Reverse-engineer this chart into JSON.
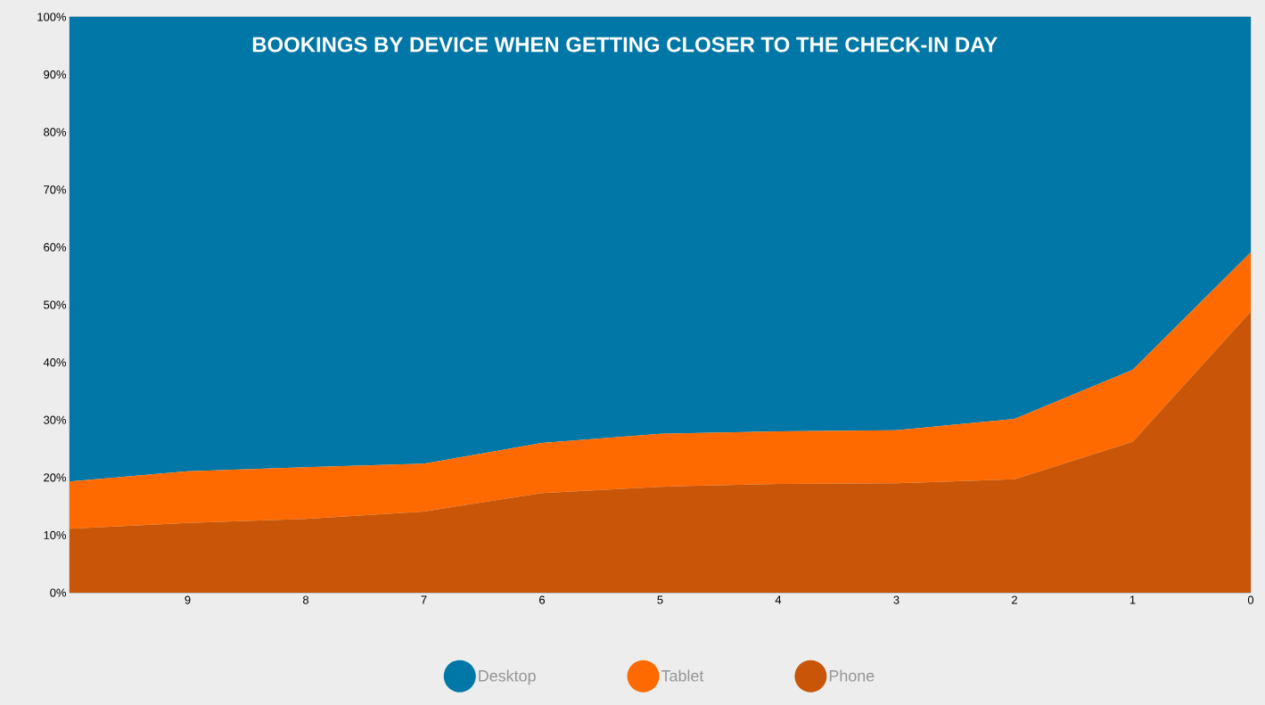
{
  "chart_data": {
    "type": "area",
    "title": "BOOKINGS BY DEVICE WHEN GETTING CLOSER TO THE CHECK-IN DAY",
    "stacked": true,
    "x": [
      10,
      9,
      8,
      7,
      6,
      5,
      4,
      3,
      2,
      1,
      0
    ],
    "xlim": [
      10,
      0
    ],
    "xticks": [
      9,
      8,
      7,
      6,
      5,
      4,
      3,
      2,
      1,
      0
    ],
    "ylim": [
      0,
      100
    ],
    "yticks": [
      {
        "value": 0,
        "label": "0%"
      },
      {
        "value": 10,
        "label": "10%"
      },
      {
        "value": 20,
        "label": "20%"
      },
      {
        "value": 30,
        "label": "30%"
      },
      {
        "value": 40,
        "label": "40%"
      },
      {
        "value": 50,
        "label": "50%"
      },
      {
        "value": 60,
        "label": "60%"
      },
      {
        "value": 70,
        "label": "70%"
      },
      {
        "value": 80,
        "label": "80%"
      },
      {
        "value": 90,
        "label": "90%"
      },
      {
        "value": 100,
        "label": "100%"
      }
    ],
    "grid": "y",
    "legend": "bottom",
    "series": [
      {
        "name": "Phone",
        "color": "#c85508",
        "values": [
          11.1,
          12.1,
          12.8,
          14.1,
          17.3,
          18.4,
          18.9,
          19.0,
          19.7,
          26.2,
          48.8
        ]
      },
      {
        "name": "Tablet",
        "color": "#ff6a00",
        "values": [
          8.2,
          9.0,
          9.0,
          8.3,
          8.7,
          9.2,
          9.1,
          9.2,
          10.5,
          12.5,
          10.3
        ]
      },
      {
        "name": "Desktop",
        "color": "#0077a6",
        "values": [
          80.7,
          78.9,
          78.2,
          77.6,
          74.0,
          72.4,
          72.0,
          71.8,
          69.8,
          61.3,
          40.9
        ]
      }
    ]
  }
}
